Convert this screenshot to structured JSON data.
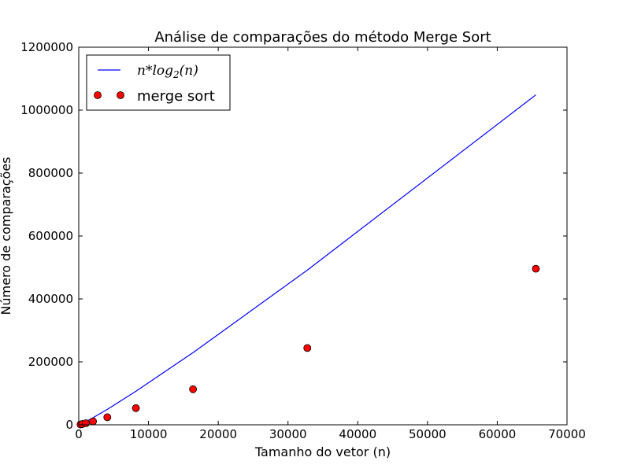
{
  "chart_data": {
    "type": "scatter",
    "title": "Análise de comparações do método Merge Sort",
    "xlabel": "Tamanho do vetor (n)",
    "ylabel": "Número de comparações",
    "xlim": [
      0,
      70000
    ],
    "ylim": [
      0,
      1200000
    ],
    "xticks": [
      0,
      10000,
      20000,
      30000,
      40000,
      50000,
      60000,
      70000
    ],
    "yticks": [
      0,
      200000,
      400000,
      600000,
      800000,
      1000000,
      1200000
    ],
    "grid": false,
    "legend_position": "top-left",
    "series": [
      {
        "name": "n*log_2(n)",
        "kind": "line",
        "color": "#0000ff",
        "x": [
          256,
          512,
          1024,
          2048,
          4096,
          8192,
          16384,
          32768,
          65536
        ],
        "y": [
          2048,
          4608,
          10240,
          22528,
          49152,
          106496,
          229376,
          491520,
          1048576
        ]
      },
      {
        "name": "merge sort",
        "kind": "scatter",
        "color": "#ff0000",
        "x": [
          256,
          512,
          1024,
          2048,
          4096,
          8192,
          16384,
          32768,
          65536
        ],
        "y": [
          1000,
          2300,
          5000,
          11000,
          24000,
          53000,
          113000,
          244000,
          496000
        ]
      }
    ]
  }
}
